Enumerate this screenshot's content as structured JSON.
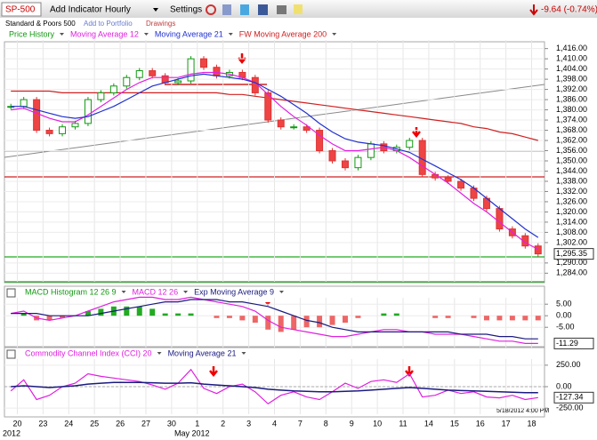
{
  "toolbar": {
    "symbol": "SP-500",
    "add_indicator": "Add Indicator",
    "interval": "Hourly",
    "settings": "Settings",
    "change": "-9.64 (-0.74%)",
    "name": "Standard & Poors 500",
    "add_to_portfolio": "Add to Portfolio",
    "drawings": "Drawings"
  },
  "x_axis": {
    "categories": [
      "20",
      "23",
      "24",
      "25",
      "26",
      "27",
      "30",
      "1",
      "2",
      "3",
      "4",
      "7",
      "8",
      "9",
      "10",
      "11",
      "14",
      "15",
      "16",
      "17",
      "18"
    ],
    "year": "2012",
    "month": "May 2012"
  },
  "timestamp": "5/18/2012 4:00 PM",
  "chart_data": [
    {
      "type": "candlestick",
      "last_label": "1,295.35",
      "ylim": [
        1280,
        1420
      ],
      "yticks": [
        {
          "value": 1284,
          "label": "1,284.00"
        },
        {
          "value": 1290,
          "label": "1,290.00"
        },
        {
          "value": 1302,
          "label": "1,302.00"
        },
        {
          "value": 1308,
          "label": "1,308.00"
        },
        {
          "value": 1314,
          "label": "1,314.00"
        },
        {
          "value": 1320,
          "label": "1,320.00"
        },
        {
          "value": 1326,
          "label": "1,326.00"
        },
        {
          "value": 1332,
          "label": "1,332.00"
        },
        {
          "value": 1338,
          "label": "1,338.00"
        },
        {
          "value": 1344,
          "label": "1,344.00"
        },
        {
          "value": 1350,
          "label": "1,350.00"
        },
        {
          "value": 1356,
          "label": "1,356.00"
        },
        {
          "value": 1362,
          "label": "1,362.00"
        },
        {
          "value": 1368,
          "label": "1,368.00"
        },
        {
          "value": 1374,
          "label": "1,374.00"
        },
        {
          "value": 1380,
          "label": "1,380.00"
        },
        {
          "value": 1386,
          "label": "1,386.00"
        },
        {
          "value": 1392,
          "label": "1,392.00"
        },
        {
          "value": 1398,
          "label": "1,398.00"
        },
        {
          "value": 1404,
          "label": "1,404.00"
        },
        {
          "value": 1410,
          "label": "1,410.00"
        },
        {
          "value": 1416,
          "label": "1,416.00"
        }
      ],
      "series": [
        {
          "name": "Price History",
          "color": "#119911",
          "values": [
            1382,
            1386,
            1368,
            1366,
            1370,
            1372,
            1386,
            1390,
            1394,
            1399,
            1403,
            1400,
            1396,
            1397,
            1410,
            1405,
            1400,
            1402,
            1399,
            1390,
            1374,
            1370,
            1370,
            1368,
            1356,
            1350,
            1346,
            1352,
            1360,
            1356,
            1358,
            1362,
            1342,
            1340,
            1338,
            1334,
            1328,
            1322,
            1310,
            1306,
            1300,
            1295.35
          ]
        },
        {
          "name": "Moving Average 12",
          "color": "#e020e0",
          "values": [
            1380,
            1381,
            1378,
            1375,
            1373,
            1373,
            1377,
            1382,
            1387,
            1392,
            1396,
            1399,
            1399,
            1399,
            1401,
            1402,
            1402,
            1401,
            1399,
            1396,
            1389,
            1382,
            1376,
            1371,
            1365,
            1360,
            1356,
            1356,
            1357,
            1358,
            1356,
            1352,
            1347,
            1342,
            1337,
            1331,
            1325,
            1320,
            1314,
            1308,
            1302,
            1298
          ]
        },
        {
          "name": "Moving Average 21",
          "color": "#2030d0",
          "values": [
            1382,
            1382,
            1380,
            1378,
            1376,
            1375,
            1376,
            1379,
            1382,
            1386,
            1390,
            1394,
            1396,
            1398,
            1400,
            1401,
            1400,
            1399,
            1398,
            1396,
            1392,
            1388,
            1383,
            1378,
            1372,
            1367,
            1363,
            1361,
            1360,
            1359,
            1357,
            1355,
            1351,
            1347,
            1343,
            1339,
            1334,
            1328,
            1322,
            1316,
            1310,
            1305
          ]
        },
        {
          "name": "FW Moving Average 200",
          "color": "#d02020",
          "values": [
            1391,
            1391,
            1391,
            1391,
            1390,
            1390,
            1390,
            1390,
            1390,
            1390,
            1390,
            1390,
            1390,
            1390,
            1390,
            1390,
            1390,
            1389,
            1389,
            1388,
            1387,
            1386,
            1385,
            1384,
            1383,
            1382,
            1381,
            1380,
            1379,
            1378,
            1377,
            1376,
            1375,
            1374,
            1373,
            1372,
            1370,
            1369,
            1367,
            1366,
            1364,
            1362
          ]
        }
      ]
    },
    {
      "type": "macd",
      "ylim": [
        -13,
        7
      ],
      "last_label": "-11.29",
      "yticks": [
        {
          "value": 5,
          "label": "5.00"
        },
        {
          "value": 0,
          "label": "0.00"
        },
        {
          "value": -5,
          "label": "-5.00"
        }
      ],
      "series": [
        {
          "name": "MACD Histogram 12 26 9",
          "color": "#119911",
          "values": [
            0,
            1,
            -2,
            -2,
            -1,
            0,
            2,
            3,
            4,
            4,
            4,
            3,
            1,
            1,
            1,
            0,
            -1,
            -1,
            -2,
            -3,
            -6,
            -7,
            -6,
            -5,
            -5,
            -4,
            -3,
            -1,
            0,
            1,
            1,
            0,
            0,
            -1,
            -1,
            0,
            -1,
            -2,
            -2,
            -2,
            -2,
            -2
          ]
        },
        {
          "name": "MACD 12 26",
          "color": "#e020e0",
          "values": [
            1,
            2,
            -1,
            -2,
            -1,
            0,
            2,
            4,
            6,
            7,
            8,
            8,
            7,
            7,
            8,
            7,
            6,
            5,
            4,
            2,
            -2,
            -5,
            -6,
            -7,
            -8,
            -9,
            -9,
            -8,
            -7,
            -6,
            -6,
            -7,
            -7,
            -8,
            -8,
            -8,
            -9,
            -10,
            -11,
            -11,
            -12,
            -12
          ]
        },
        {
          "name": "Exp Moving Average 9",
          "color": "#1a1a80",
          "values": [
            1,
            1,
            1,
            0,
            0,
            0,
            0,
            1,
            2,
            3,
            4,
            5,
            6,
            6,
            7,
            7,
            7,
            6,
            6,
            5,
            4,
            2,
            0,
            -2,
            -3,
            -5,
            -6,
            -7,
            -7,
            -7,
            -7,
            -7,
            -7,
            -7,
            -7,
            -8,
            -8,
            -8,
            -9,
            -9,
            -10,
            -10
          ]
        }
      ]
    },
    {
      "type": "cci",
      "ylim": [
        -300,
        300
      ],
      "last_label": "-127.34",
      "yticks": [
        {
          "value": 250,
          "label": "250.00"
        },
        {
          "value": 0,
          "label": "0.00"
        },
        {
          "value": -250,
          "label": "-250.00"
        }
      ],
      "series": [
        {
          "name": "Commodity Channel Index (CCI) 20",
          "color": "#e020e0",
          "values": [
            -50,
            80,
            -150,
            -100,
            0,
            40,
            150,
            120,
            100,
            80,
            60,
            20,
            -30,
            40,
            200,
            -20,
            -80,
            0,
            30,
            -60,
            -200,
            -100,
            -60,
            -120,
            -150,
            -60,
            40,
            -20,
            60,
            80,
            50,
            150,
            -120,
            -100,
            -40,
            -80,
            -60,
            -120,
            -130,
            -100,
            -150,
            -127.34
          ]
        },
        {
          "name": "Moving Average 21",
          "color": "#1a1a80",
          "values": [
            0,
            10,
            0,
            -10,
            0,
            10,
            30,
            40,
            50,
            50,
            50,
            45,
            40,
            40,
            45,
            30,
            20,
            10,
            0,
            -10,
            -30,
            -40,
            -50,
            -55,
            -60,
            -60,
            -55,
            -50,
            -40,
            -30,
            -20,
            -10,
            -20,
            -30,
            -40,
            -45,
            -50,
            -55,
            -60,
            -65,
            -70,
            -70
          ]
        }
      ]
    }
  ]
}
